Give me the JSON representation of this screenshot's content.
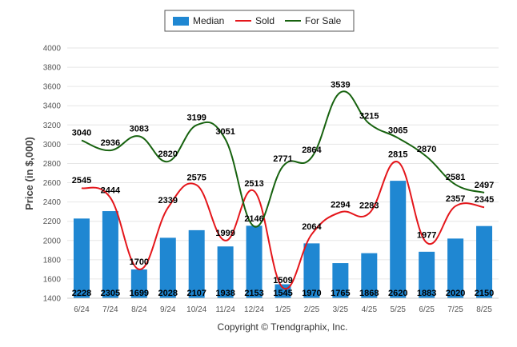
{
  "chart_data": {
    "type": "bar",
    "categories": [
      "6/24",
      "7/24",
      "8/24",
      "9/24",
      "10/24",
      "11/24",
      "12/24",
      "1/25",
      "2/25",
      "3/25",
      "4/25",
      "5/25",
      "6/25",
      "7/25",
      "8/25"
    ],
    "series": [
      {
        "name": "Median",
        "type": "bar",
        "color": "#1f87d2",
        "values": [
          2228,
          2305,
          1699,
          2028,
          2107,
          1938,
          2153,
          1545,
          1970,
          1765,
          1868,
          2620,
          1883,
          2020,
          2150
        ]
      },
      {
        "name": "Sold",
        "type": "line",
        "color": "#e4161b",
        "values": [
          2545,
          2444,
          1700,
          2339,
          2575,
          1999,
          2513,
          1509,
          2064,
          2294,
          2283,
          2815,
          1977,
          2357,
          2345
        ]
      },
      {
        "name": "For Sale",
        "type": "line",
        "color": "#17620f",
        "values": [
          3040,
          2936,
          3083,
          2820,
          3199,
          3051,
          2146,
          2771,
          2864,
          3539,
          3215,
          3065,
          2870,
          2581,
          2497
        ]
      }
    ],
    "ylabel": "Price (in $,000)",
    "ylim": [
      1400,
      4000
    ],
    "yticks": [
      1400,
      1600,
      1800,
      2000,
      2200,
      2400,
      2600,
      2800,
      3000,
      3200,
      3400,
      3600,
      3800,
      4000
    ],
    "grid": true,
    "legend": "top-center"
  },
  "footer": {
    "copyright": "Copyright © Trendgraphix, Inc."
  }
}
